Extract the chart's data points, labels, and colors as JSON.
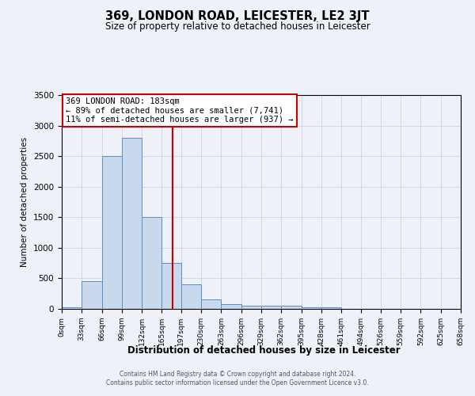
{
  "title": "369, LONDON ROAD, LEICESTER, LE2 3JT",
  "subtitle": "Size of property relative to detached houses in Leicester",
  "xlabel": "Distribution of detached houses by size in Leicester",
  "ylabel": "Number of detached properties",
  "annotation_line1": "369 LONDON ROAD: 183sqm",
  "annotation_line2": "← 89% of detached houses are smaller (7,741)",
  "annotation_line3": "11% of semi-detached houses are larger (937) →",
  "property_size": 183,
  "footnote1": "Contains HM Land Registry data © Crown copyright and database right 2024.",
  "footnote2": "Contains public sector information licensed under the Open Government Licence v3.0.",
  "bin_labels": [
    "0sqm",
    "33sqm",
    "66sqm",
    "99sqm",
    "132sqm",
    "165sqm",
    "197sqm",
    "230sqm",
    "263sqm",
    "296sqm",
    "329sqm",
    "362sqm",
    "395sqm",
    "428sqm",
    "461sqm",
    "494sqm",
    "526sqm",
    "559sqm",
    "592sqm",
    "625sqm",
    "658sqm"
  ],
  "bin_edges": [
    0,
    33,
    66,
    99,
    132,
    165,
    197,
    230,
    263,
    296,
    329,
    362,
    395,
    428,
    461,
    494,
    526,
    559,
    592,
    625,
    658
  ],
  "bar_heights": [
    30,
    460,
    2500,
    2800,
    1500,
    750,
    400,
    150,
    75,
    50,
    50,
    50,
    30,
    20,
    5,
    3,
    2,
    1,
    1,
    1
  ],
  "bar_color": "#c8d9ed",
  "bar_edge_color": "#5b8ec4",
  "red_line_color": "#cc0000",
  "annotation_box_color": "#cc0000",
  "grid_color": "#d0d8e8",
  "bg_color": "#eef2f8",
  "ylim": [
    0,
    3500
  ],
  "yticks": [
    0,
    500,
    1000,
    1500,
    2000,
    2500,
    3000,
    3500
  ]
}
